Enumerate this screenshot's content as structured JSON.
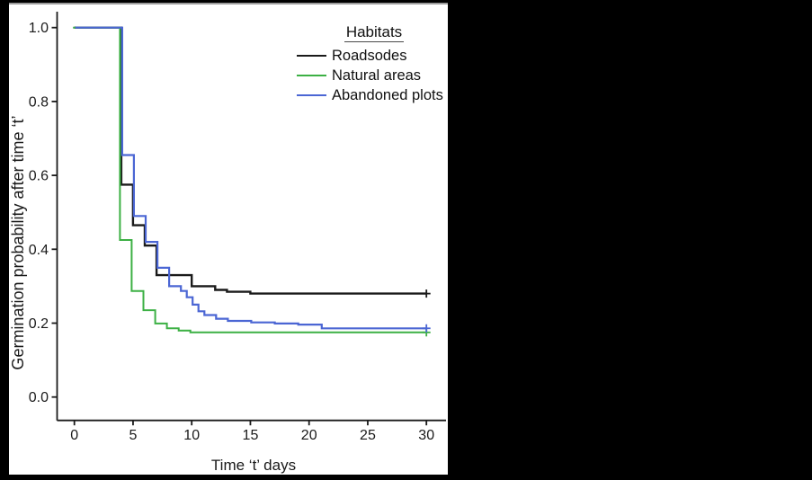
{
  "figure": {
    "background": "#000000",
    "panel_background": "#ffffff",
    "axis_color": "#1a1a1a"
  },
  "chart_data": {
    "type": "line",
    "chart_style": "kaplan-meier-step-survival-curves",
    "title": "",
    "xlabel": "Time ‘t’ days",
    "ylabel": "Germination probability after time ‘t’",
    "xticks": [
      0,
      5,
      10,
      15,
      20,
      25,
      30
    ],
    "yticks": [
      "1.0",
      "0.8",
      "0.6",
      "0.4",
      "0.2",
      "0.0"
    ],
    "xlim": [
      0,
      31
    ],
    "ylim": [
      0.0,
      1.05
    ],
    "grid": false,
    "legend": {
      "title": "Habitats",
      "position": "top-right"
    },
    "series": [
      {
        "name": "Roadsodes",
        "color": "#1a1a1a",
        "steps": [
          [
            0,
            1.0
          ],
          [
            4,
            0.575
          ],
          [
            5,
            0.465
          ],
          [
            6,
            0.41
          ],
          [
            7,
            0.33
          ],
          [
            10,
            0.3
          ],
          [
            12,
            0.29
          ],
          [
            13,
            0.285
          ],
          [
            15,
            0.28
          ],
          [
            30,
            0.28
          ]
        ],
        "censor_marks": [
          [
            30,
            0.28
          ]
        ]
      },
      {
        "name": "Natural areas",
        "color": "#3cb044",
        "steps": [
          [
            0,
            1.0
          ],
          [
            4,
            0.425
          ],
          [
            5,
            0.287
          ],
          [
            6,
            0.235
          ],
          [
            7,
            0.199
          ],
          [
            8,
            0.186
          ],
          [
            9,
            0.18
          ],
          [
            10,
            0.175
          ],
          [
            30,
            0.175
          ]
        ],
        "censor_marks": [
          [
            30,
            0.175
          ]
        ]
      },
      {
        "name": "Abandoned plots",
        "color": "#4b66d4",
        "steps": [
          [
            0,
            1.0
          ],
          [
            4,
            0.655
          ],
          [
            5,
            0.49
          ],
          [
            6,
            0.42
          ],
          [
            7,
            0.35
          ],
          [
            8,
            0.3
          ],
          [
            9,
            0.287
          ],
          [
            9.5,
            0.27
          ],
          [
            10,
            0.25
          ],
          [
            10.5,
            0.232
          ],
          [
            11,
            0.222
          ],
          [
            12,
            0.212
          ],
          [
            13,
            0.206
          ],
          [
            15,
            0.202
          ],
          [
            17,
            0.199
          ],
          [
            19,
            0.196
          ],
          [
            21,
            0.186
          ],
          [
            30,
            0.186
          ]
        ],
        "censor_marks": [
          [
            30,
            0.186
          ]
        ]
      }
    ]
  }
}
